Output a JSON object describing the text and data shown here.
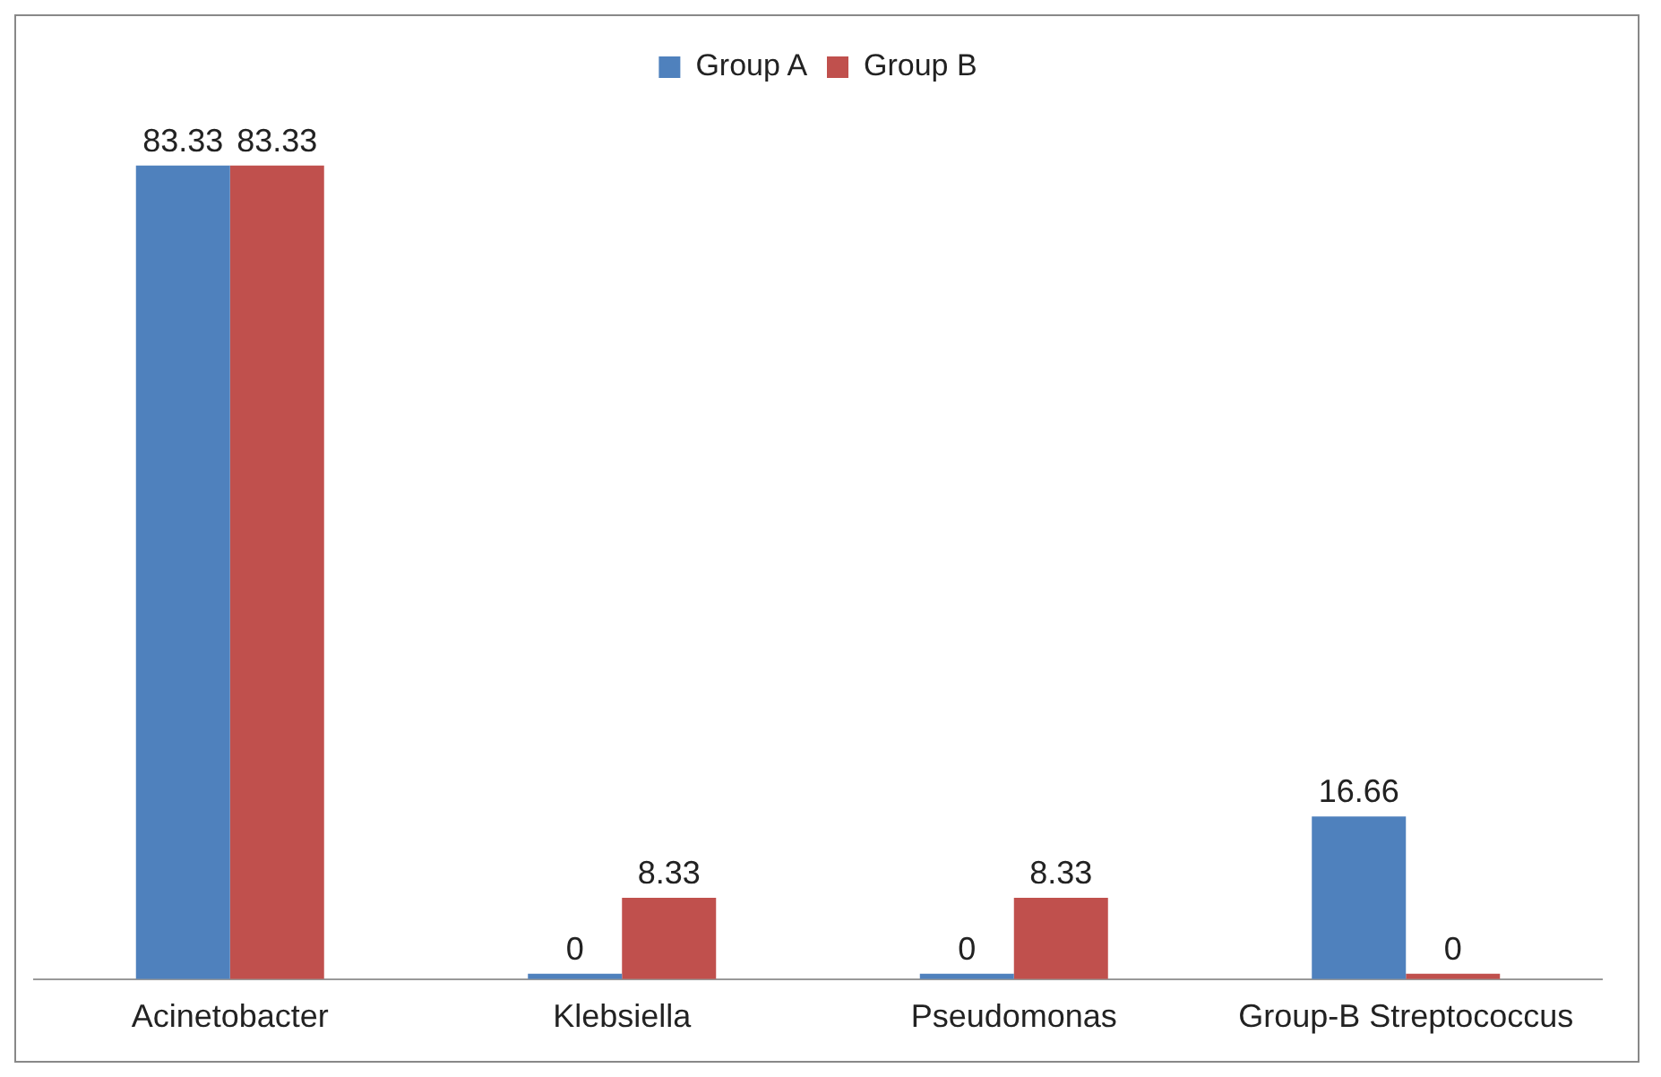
{
  "chart_data": {
    "type": "bar",
    "categories": [
      "Acinetobacter",
      "Klebsiella",
      "Pseudomonas",
      "Group-B Streptococcus"
    ],
    "series": [
      {
        "name": "Group A",
        "color": "#4f81bd",
        "values": [
          83.33,
          0,
          0,
          16.66
        ]
      },
      {
        "name": "Group B",
        "color": "#c0504d",
        "values": [
          83.33,
          8.33,
          8.33,
          0
        ]
      }
    ],
    "data_labels": true,
    "legend": "top"
  }
}
